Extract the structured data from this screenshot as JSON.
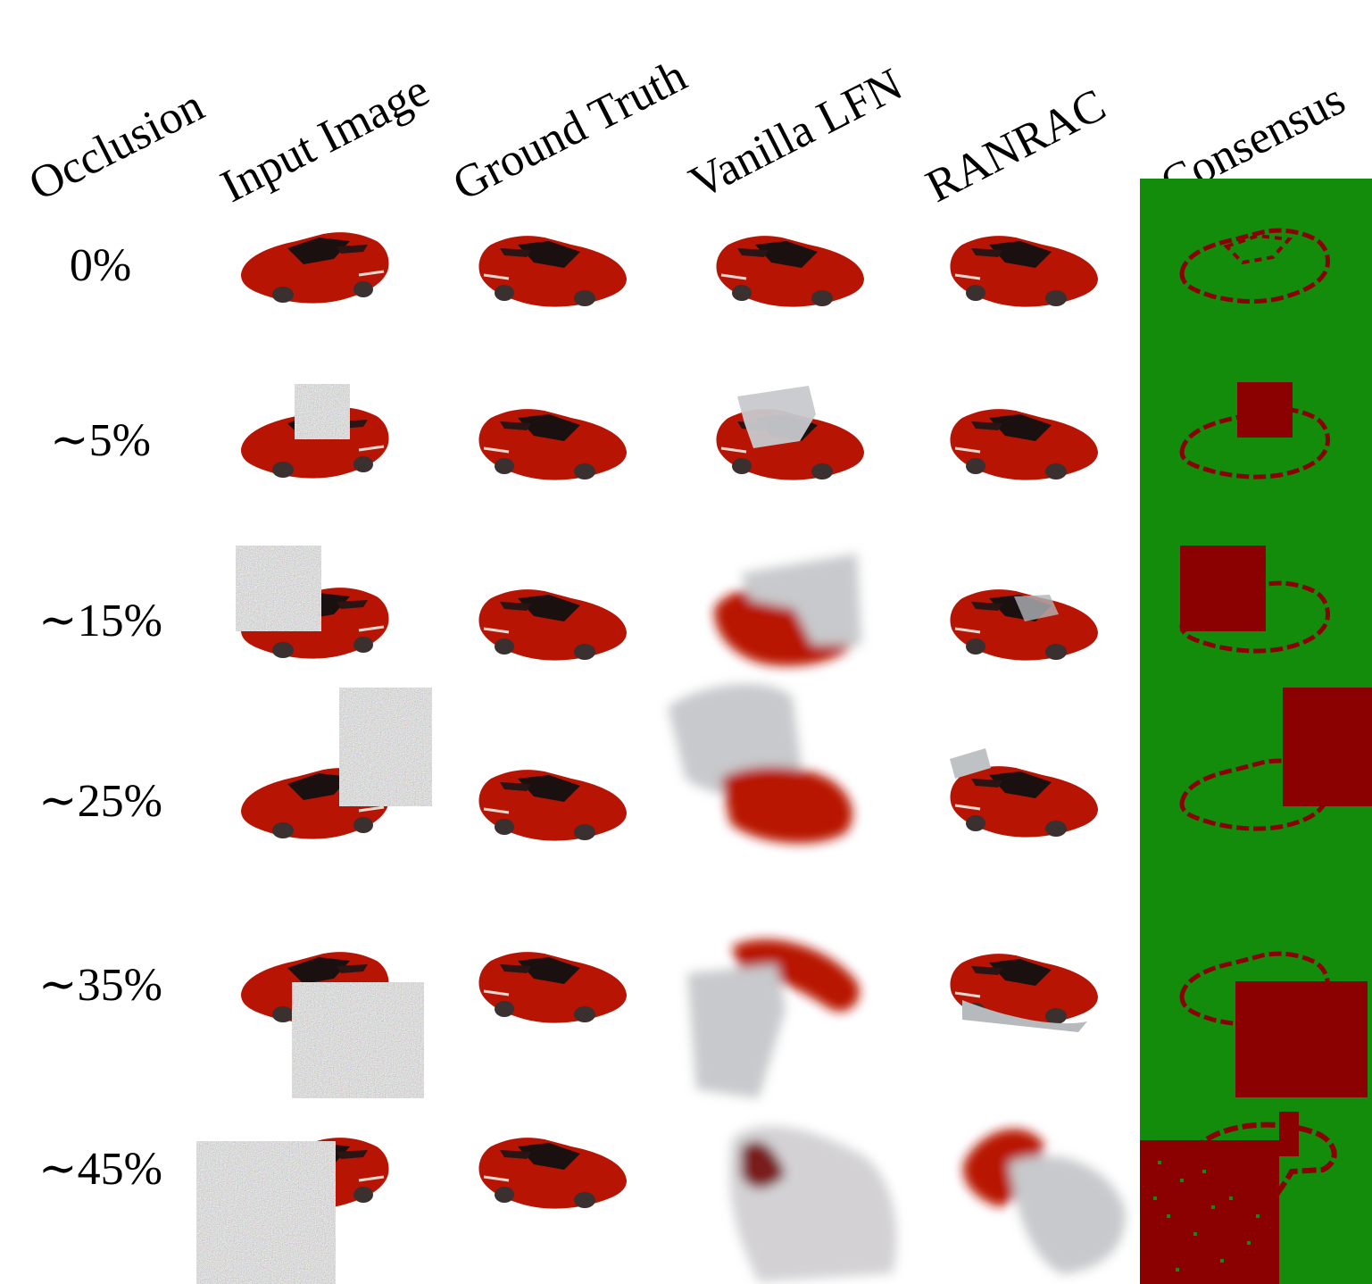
{
  "columns": [
    "Occlusion",
    "Input Image",
    "Ground Truth",
    "Vanilla LFN",
    "RANRAC",
    "Consensus"
  ],
  "rows": [
    "0%",
    "∼5%",
    "∼15%",
    "∼25%",
    "∼35%",
    "∼45%"
  ],
  "occlusion_fraction": [
    0,
    0.05,
    0.15,
    0.25,
    0.35,
    0.45
  ],
  "colors": {
    "car_red": "#b81404",
    "car_window": "#1a1010",
    "noise": "#8f8f80",
    "lfn_gray": "#c7c9cc",
    "consensus_green": "#138c0b",
    "consensus_red": "#8b0000"
  }
}
